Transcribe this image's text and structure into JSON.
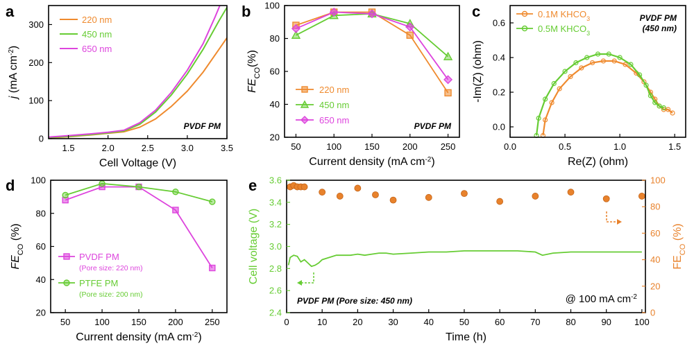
{
  "chart_data": [
    {
      "panel": "a",
      "type": "line",
      "xlabel": "Cell Voltage (V)",
      "ylabel_main": "j",
      "ylabel_unit": " (mA cm",
      "ylabel_sup": "-2",
      "ylabel_close": ")",
      "xlim": [
        1.25,
        3.5
      ],
      "ylim": [
        0,
        350
      ],
      "xticks": [
        "1.5",
        "2.0",
        "2.5",
        "3.0",
        "3.5"
      ],
      "xtick_values": [
        1.5,
        2.0,
        2.5,
        3.0,
        3.5
      ],
      "yticks": [
        "0",
        "100",
        "200",
        "300"
      ],
      "ytick_values": [
        0,
        100,
        200,
        300
      ],
      "annotation": "PVDF PM",
      "series": [
        {
          "name": "220 nm",
          "color": "#ef8a2e",
          "x": [
            1.25,
            1.5,
            1.8,
            2.0,
            2.2,
            2.4,
            2.6,
            2.8,
            3.0,
            3.2,
            3.4,
            3.5
          ],
          "y": [
            2,
            5,
            10,
            14,
            18,
            30,
            52,
            85,
            125,
            175,
            235,
            265
          ]
        },
        {
          "name": "450 nm",
          "color": "#66cc33",
          "x": [
            1.25,
            1.5,
            1.8,
            2.0,
            2.2,
            2.4,
            2.6,
            2.8,
            3.0,
            3.2,
            3.4,
            3.5
          ],
          "y": [
            3,
            6,
            11,
            15,
            20,
            38,
            70,
            115,
            170,
            235,
            310,
            345
          ]
        },
        {
          "name": "650 nm",
          "color": "#dd44dd",
          "x": [
            1.25,
            1.5,
            1.8,
            2.0,
            2.2,
            2.4,
            2.6,
            2.8,
            3.0,
            3.2,
            3.35,
            3.42
          ],
          "y": [
            4,
            8,
            13,
            17,
            22,
            42,
            75,
            122,
            180,
            250,
            320,
            355
          ]
        }
      ]
    },
    {
      "panel": "b",
      "type": "line",
      "xlabel_main": "Current density (mA cm",
      "xlabel_sup": "-2",
      "xlabel_close": ")",
      "ylabel_main": "FE",
      "ylabel_sub": "CO",
      "ylabel_unit": "(%)",
      "xlim": [
        35,
        265
      ],
      "ylim": [
        20,
        100
      ],
      "xticks": [
        "50",
        "100",
        "150",
        "200",
        "250"
      ],
      "xtick_values": [
        50,
        100,
        150,
        200,
        250
      ],
      "yticks": [
        "20",
        "40",
        "60",
        "80",
        "100"
      ],
      "ytick_values": [
        20,
        40,
        60,
        80,
        100
      ],
      "annotation": "PVDF PM",
      "categories": [
        50,
        100,
        150,
        200,
        250
      ],
      "series": [
        {
          "name": "220 nm",
          "color": "#ef8a2e",
          "marker": "square",
          "values": [
            88,
            96,
            96,
            82,
            47
          ]
        },
        {
          "name": "450 nm",
          "color": "#66cc33",
          "marker": "triangle",
          "values": [
            82,
            94,
            95,
            89,
            69
          ]
        },
        {
          "name": "650 nm",
          "color": "#dd44dd",
          "marker": "diamond",
          "values": [
            86,
            96,
            95,
            87,
            55
          ]
        }
      ]
    },
    {
      "panel": "c",
      "type": "scatter",
      "xlabel": "Re(Z) (ohm)",
      "ylabel": "-Im(Z) (ohm)",
      "xlim": [
        0,
        1.6
      ],
      "ylim": [
        -0.06,
        0.7
      ],
      "xticks": [
        "0.0",
        "0.5",
        "1.0",
        "1.5"
      ],
      "xtick_values": [
        0,
        0.5,
        1.0,
        1.5
      ],
      "yticks": [
        "0.0",
        "0.2",
        "0.4",
        "0.6"
      ],
      "ytick_values": [
        0,
        0.2,
        0.4,
        0.6
      ],
      "annotation_line1": "PVDF PM",
      "annotation_line2": "(450 nm)",
      "series": [
        {
          "name_main": "0.1M KHCO",
          "name_sub": "3",
          "color": "#ef8a2e",
          "x": [
            0.3,
            0.32,
            0.38,
            0.45,
            0.55,
            0.65,
            0.75,
            0.85,
            0.95,
            1.05,
            1.15,
            1.22,
            1.28,
            1.32,
            1.36,
            1.4,
            1.44,
            1.48
          ],
          "y": [
            -0.05,
            0.04,
            0.14,
            0.22,
            0.29,
            0.34,
            0.37,
            0.38,
            0.38,
            0.36,
            0.31,
            0.26,
            0.2,
            0.16,
            0.12,
            0.1,
            0.1,
            0.08
          ]
        },
        {
          "name_main": "0.5M KHCO",
          "name_sub": "3",
          "color": "#66cc33",
          "x": [
            0.24,
            0.26,
            0.32,
            0.4,
            0.5,
            0.6,
            0.7,
            0.8,
            0.9,
            1.0,
            1.1,
            1.18,
            1.24,
            1.28,
            1.32,
            1.36,
            1.4
          ],
          "y": [
            -0.05,
            0.05,
            0.16,
            0.25,
            0.32,
            0.37,
            0.4,
            0.42,
            0.42,
            0.4,
            0.36,
            0.3,
            0.24,
            0.18,
            0.14,
            0.12,
            0.11
          ]
        }
      ]
    },
    {
      "panel": "d",
      "type": "line",
      "xlabel_main": "Current density (mA cm",
      "xlabel_sup": "-2",
      "xlabel_close": ")",
      "ylabel_main": "FE",
      "ylabel_sub": "CO",
      "ylabel_unit": " (%)",
      "xlim": [
        30,
        270
      ],
      "ylim": [
        20,
        100
      ],
      "xticks": [
        "50",
        "100",
        "150",
        "200",
        "250"
      ],
      "xtick_values": [
        50,
        100,
        150,
        200,
        250
      ],
      "yticks": [
        "20",
        "40",
        "60",
        "80",
        "100"
      ],
      "ytick_values": [
        20,
        40,
        60,
        80,
        100
      ],
      "categories": [
        50,
        100,
        150,
        200,
        250
      ],
      "series": [
        {
          "name": "PVDF PM",
          "subname": "(Pore size: 220 nm)",
          "color": "#dd44dd",
          "marker": "square",
          "values": [
            88,
            96,
            96,
            82,
            47
          ]
        },
        {
          "name": "PTFE PM",
          "subname": "(Pore size: 200 nm)",
          "color": "#66cc33",
          "marker": "circle",
          "values": [
            91,
            98,
            96,
            93,
            87
          ]
        }
      ]
    },
    {
      "panel": "e",
      "type": "line",
      "xlabel": "Time (h)",
      "ylabel_left": "Cell voltage (V)",
      "ylabel_right_main": "FE",
      "ylabel_right_sub": "CO",
      "ylabel_right_unit": " (%)",
      "xlim": [
        0,
        101
      ],
      "ylim_left": [
        2.4,
        3.6
      ],
      "ylim_right": [
        0,
        100
      ],
      "xticks": [
        "0",
        "10",
        "20",
        "30",
        "40",
        "50",
        "60",
        "70",
        "80",
        "90",
        "100"
      ],
      "xtick_values": [
        0,
        10,
        20,
        30,
        40,
        50,
        60,
        70,
        80,
        90,
        100
      ],
      "yticks_left": [
        "2.4",
        "2.6",
        "2.8",
        "3.0",
        "3.2",
        "3.4",
        "3.6"
      ],
      "ytick_values_left": [
        2.4,
        2.6,
        2.8,
        3.0,
        3.2,
        3.4,
        3.6
      ],
      "yticks_right": [
        "0",
        "20",
        "40",
        "60",
        "80",
        "100"
      ],
      "ytick_values_right": [
        0,
        20,
        40,
        60,
        80,
        100
      ],
      "annotation": "PVDF PM (Pore size: 450 nm)",
      "condition_main": "@ 100 mA cm",
      "condition_sup": "-2",
      "voltage_series": {
        "name": "Cell voltage",
        "color": "#66cc33",
        "x": [
          0.5,
          1,
          2,
          3,
          4,
          5,
          6,
          7,
          8,
          9,
          10,
          12,
          14,
          16,
          18,
          20,
          22,
          24,
          26,
          28,
          30,
          35,
          40,
          45,
          50,
          55,
          60,
          65,
          70,
          72,
          75,
          80,
          85,
          90,
          95,
          100
        ],
        "y": [
          2.83,
          2.9,
          2.92,
          2.91,
          2.86,
          2.88,
          2.85,
          2.82,
          2.83,
          2.85,
          2.88,
          2.9,
          2.92,
          2.92,
          2.92,
          2.93,
          2.92,
          2.93,
          2.94,
          2.94,
          2.93,
          2.94,
          2.95,
          2.95,
          2.96,
          2.96,
          2.96,
          2.96,
          2.95,
          2.92,
          2.94,
          2.95,
          2.95,
          2.95,
          2.95,
          2.95
        ]
      },
      "fe_series": {
        "name": "FE CO",
        "color": "#e8822c",
        "x": [
          1,
          2,
          3,
          4,
          5,
          10,
          15,
          20,
          25,
          30,
          40,
          50,
          60,
          70,
          80,
          90,
          100
        ],
        "y": [
          95,
          96,
          95,
          95,
          95,
          91,
          88,
          94,
          89,
          85,
          87,
          90,
          84,
          88,
          91,
          86,
          88
        ]
      }
    }
  ]
}
